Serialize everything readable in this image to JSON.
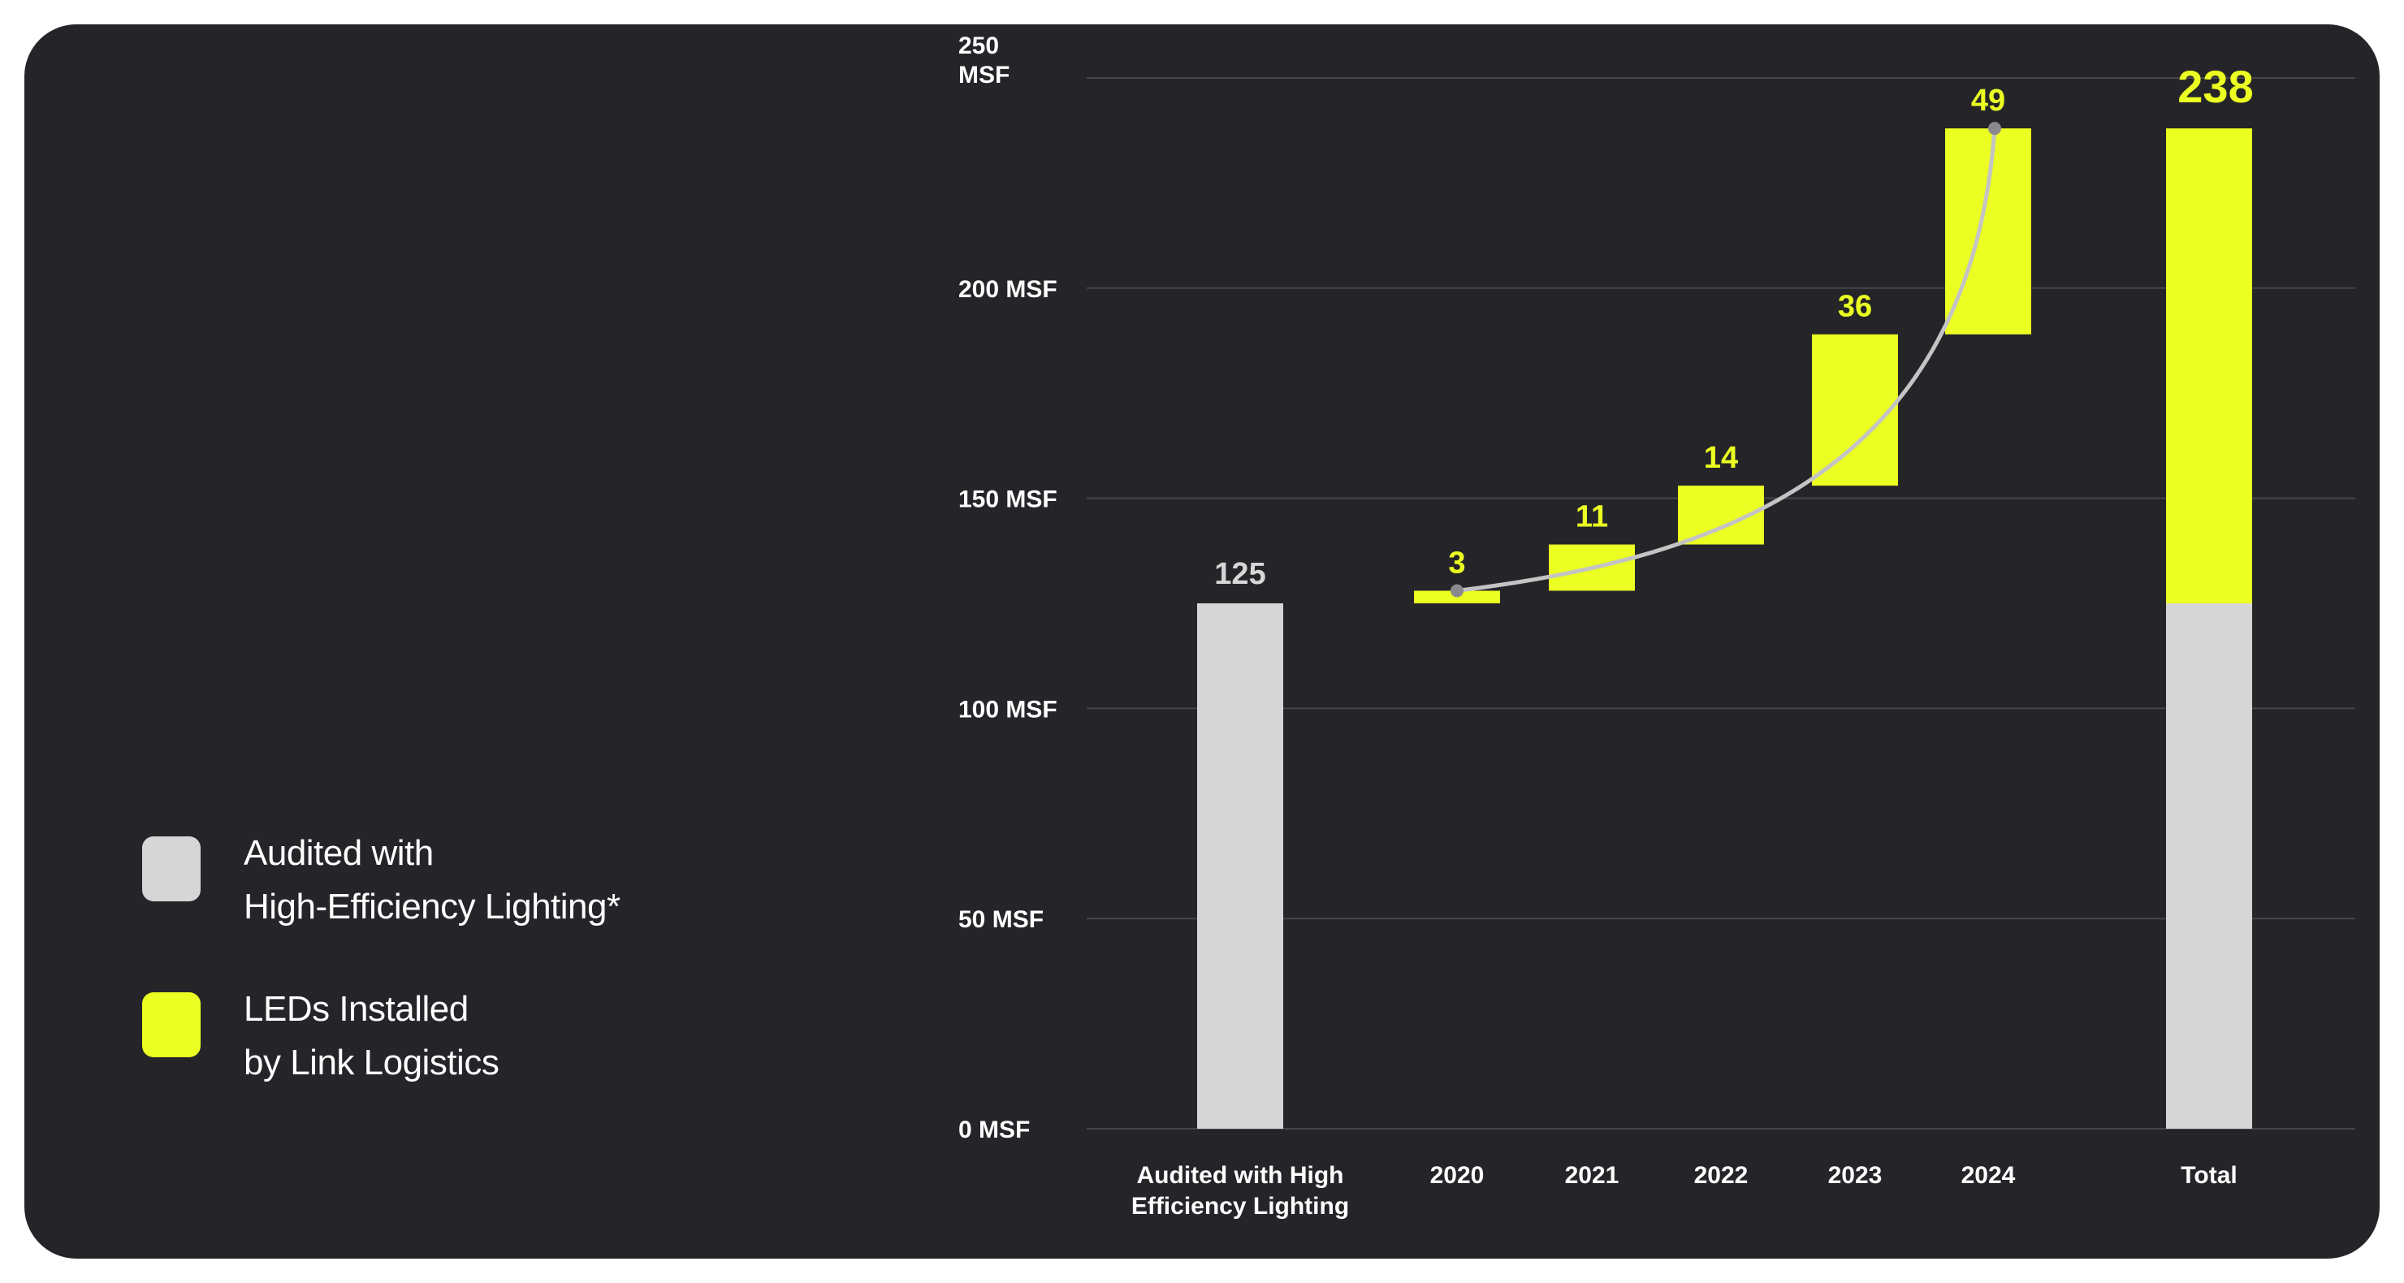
{
  "colors": {
    "background": "#252529",
    "audited": "#d6d6d6",
    "led": "#ebff22",
    "gridline": "#45454a",
    "trend_line": "#c4c4c4",
    "text": "#ffffff"
  },
  "legend": {
    "items": [
      {
        "label": "Audited with\nHigh-Efficiency Lighting*",
        "color": "#d6d6d6"
      },
      {
        "label": "LEDs Installed\nby Link Logistics",
        "color": "#ebff22"
      }
    ]
  },
  "chart_data": {
    "type": "bar",
    "subtype": "waterfall",
    "ylim": [
      0,
      250
    ],
    "yticks": [
      {
        "value": 0,
        "label": "0 MSF"
      },
      {
        "value": 50,
        "label": "50 MSF"
      },
      {
        "value": 100,
        "label": "100 MSF"
      },
      {
        "value": 150,
        "label": "150 MSF"
      },
      {
        "value": 200,
        "label": "200 MSF"
      },
      {
        "value": 250,
        "label": "250\nMSF"
      }
    ],
    "grid": true,
    "legend_position": "left",
    "categories": [
      "Audited with High\nEfficiency Lighting",
      "2020",
      "2021",
      "2022",
      "2023",
      "2024",
      "Total"
    ],
    "bars": [
      {
        "category": "Audited with High\nEfficiency Lighting",
        "kind": "audited",
        "value": 125,
        "label": "125"
      },
      {
        "category": "2020",
        "kind": "led",
        "value": 3,
        "label": "3"
      },
      {
        "category": "2021",
        "kind": "led",
        "value": 11,
        "label": "11"
      },
      {
        "category": "2022",
        "kind": "led",
        "value": 14,
        "label": "14"
      },
      {
        "category": "2023",
        "kind": "led",
        "value": 36,
        "label": "36"
      },
      {
        "category": "2024",
        "kind": "led",
        "value": 49,
        "label": "49"
      },
      {
        "category": "Total",
        "kind": "total",
        "audited_value": 125,
        "led_value": 113,
        "value": 238,
        "label": "238"
      }
    ],
    "trend_line": {
      "from_category": "2020",
      "to_category": "2024"
    }
  }
}
